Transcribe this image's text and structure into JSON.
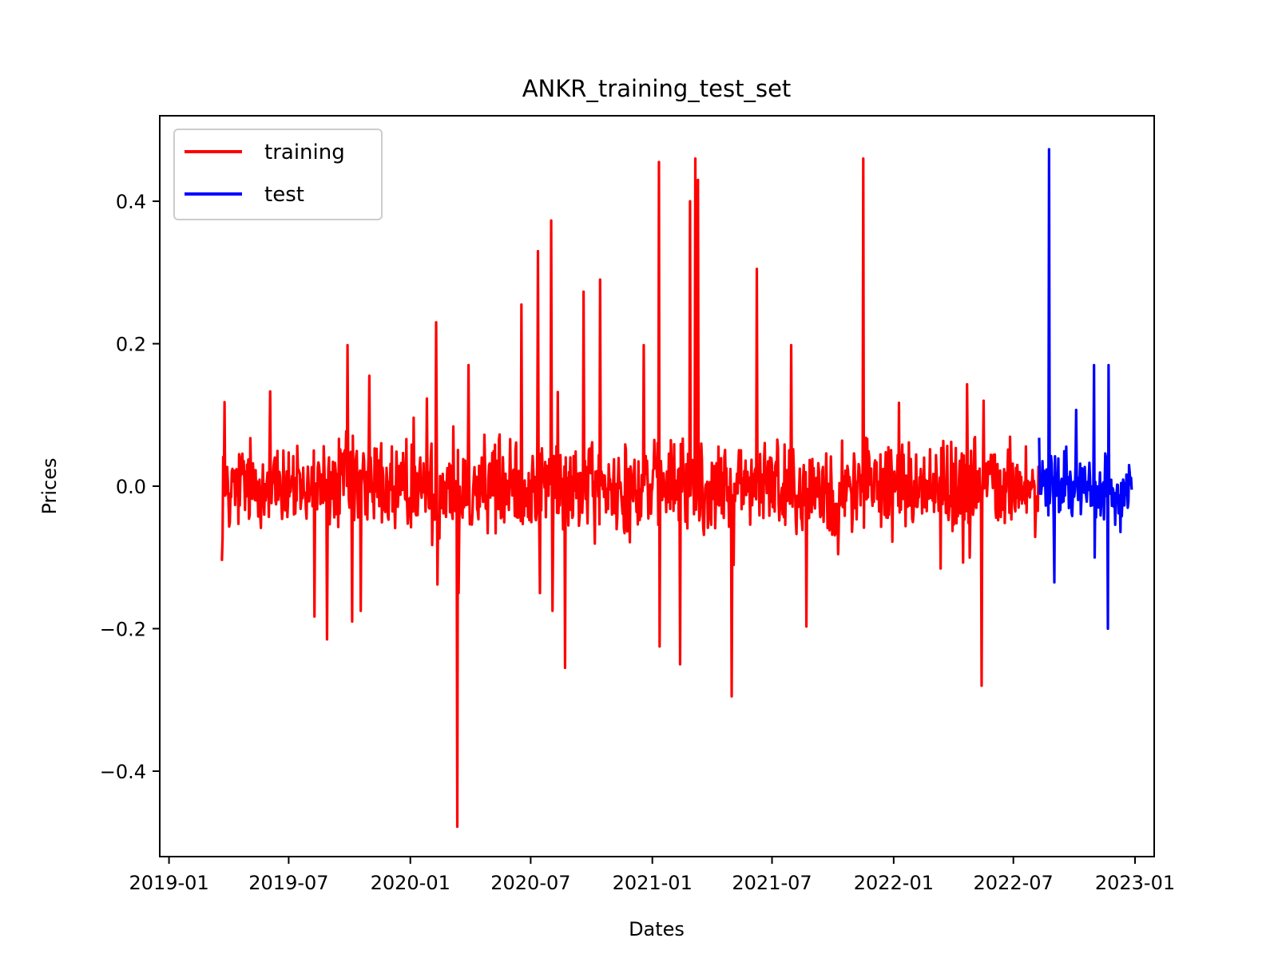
{
  "chart_data": {
    "type": "line",
    "title": "ANKR_training_test_set",
    "xlabel": "Dates",
    "ylabel": "Prices",
    "xlim": [
      "2018-12-18",
      "2023-01-30"
    ],
    "ylim": [
      -0.52,
      0.52
    ],
    "x_ticks": [
      {
        "date": "2019-01-01",
        "label": "2019-01"
      },
      {
        "date": "2019-07-01",
        "label": "2019-07"
      },
      {
        "date": "2020-01-01",
        "label": "2020-01"
      },
      {
        "date": "2020-07-01",
        "label": "2020-07"
      },
      {
        "date": "2021-01-01",
        "label": "2021-01"
      },
      {
        "date": "2021-07-01",
        "label": "2021-07"
      },
      {
        "date": "2022-01-01",
        "label": "2022-01"
      },
      {
        "date": "2022-07-01",
        "label": "2022-07"
      },
      {
        "date": "2023-01-01",
        "label": "2023-01"
      }
    ],
    "y_ticks": [
      {
        "value": -0.4,
        "label": "−0.4"
      },
      {
        "value": -0.2,
        "label": "−0.2"
      },
      {
        "value": 0.0,
        "label": "0.0"
      },
      {
        "value": 0.2,
        "label": "0.2"
      },
      {
        "value": 0.4,
        "label": "0.4"
      }
    ],
    "grid": false,
    "legend": {
      "position": "upper-left"
    },
    "series": [
      {
        "name": "training",
        "color": "#ff0000",
        "start": "2019-03-22",
        "end": "2022-08-09",
        "baseline_amplitude": 0.06,
        "spikes": [
          {
            "date": "2019-03-22",
            "value": -0.105
          },
          {
            "date": "2019-03-26",
            "value": 0.118
          },
          {
            "date": "2019-06-03",
            "value": 0.133
          },
          {
            "date": "2019-08-09",
            "value": -0.183
          },
          {
            "date": "2019-08-28",
            "value": -0.215
          },
          {
            "date": "2019-09-28",
            "value": 0.198
          },
          {
            "date": "2019-10-05",
            "value": -0.19
          },
          {
            "date": "2019-10-18",
            "value": -0.175
          },
          {
            "date": "2019-10-31",
            "value": 0.155
          },
          {
            "date": "2020-01-26",
            "value": 0.123
          },
          {
            "date": "2020-02-09",
            "value": 0.23
          },
          {
            "date": "2020-02-11",
            "value": -0.138
          },
          {
            "date": "2020-03-12",
            "value": -0.478
          },
          {
            "date": "2020-03-14",
            "value": -0.15
          },
          {
            "date": "2020-03-29",
            "value": 0.17
          },
          {
            "date": "2020-06-17",
            "value": 0.255
          },
          {
            "date": "2020-07-12",
            "value": 0.33
          },
          {
            "date": "2020-07-15",
            "value": -0.15
          },
          {
            "date": "2020-08-01",
            "value": 0.373
          },
          {
            "date": "2020-08-03",
            "value": -0.175
          },
          {
            "date": "2020-08-22",
            "value": -0.255
          },
          {
            "date": "2020-09-19",
            "value": 0.273
          },
          {
            "date": "2020-10-14",
            "value": 0.29
          },
          {
            "date": "2020-12-19",
            "value": 0.198
          },
          {
            "date": "2021-01-11",
            "value": 0.455
          },
          {
            "date": "2021-01-12",
            "value": -0.225
          },
          {
            "date": "2021-02-12",
            "value": -0.25
          },
          {
            "date": "2021-02-27",
            "value": 0.4
          },
          {
            "date": "2021-03-07",
            "value": 0.46
          },
          {
            "date": "2021-03-11",
            "value": 0.43
          },
          {
            "date": "2021-05-01",
            "value": -0.295
          },
          {
            "date": "2021-06-08",
            "value": 0.305
          },
          {
            "date": "2021-07-30",
            "value": 0.198
          },
          {
            "date": "2021-08-22",
            "value": -0.197
          },
          {
            "date": "2021-11-16",
            "value": 0.46
          },
          {
            "date": "2022-01-09",
            "value": 0.117
          },
          {
            "date": "2022-04-22",
            "value": 0.143
          },
          {
            "date": "2022-05-14",
            "value": -0.28
          },
          {
            "date": "2022-05-17",
            "value": 0.12
          }
        ]
      },
      {
        "name": "test",
        "color": "#0000ff",
        "start": "2022-08-09",
        "end": "2022-12-27",
        "baseline_amplitude": 0.045,
        "spikes": [
          {
            "date": "2022-08-09",
            "value": 0.068
          },
          {
            "date": "2022-08-24",
            "value": 0.473
          },
          {
            "date": "2022-09-01",
            "value": -0.135
          },
          {
            "date": "2022-10-04",
            "value": 0.107
          },
          {
            "date": "2022-10-31",
            "value": 0.17
          },
          {
            "date": "2022-11-01",
            "value": -0.1
          },
          {
            "date": "2022-11-21",
            "value": -0.2
          },
          {
            "date": "2022-11-22",
            "value": 0.17
          },
          {
            "date": "2022-12-27",
            "value": -0.005
          }
        ]
      }
    ]
  }
}
